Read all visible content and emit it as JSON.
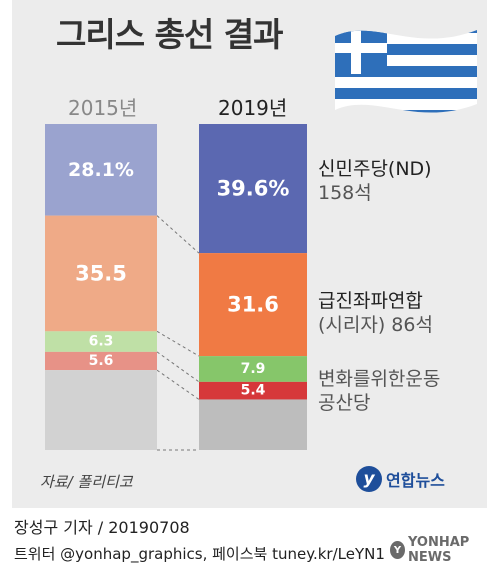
{
  "title": "그리스 총선 결과",
  "chart_data": {
    "type": "bar",
    "stacked": true,
    "categories": [
      "2015년",
      "2019년"
    ],
    "series": [
      {
        "name": "신민주당(ND)",
        "values": [
          28.1,
          39.6
        ],
        "labels": [
          "28.1%",
          "39.6%"
        ],
        "colors": [
          "#9aa3cf",
          "#5b68b1"
        ]
      },
      {
        "name": "급진좌파연합(시리자)",
        "values": [
          35.5,
          31.6
        ],
        "labels": [
          "35.5",
          "31.6"
        ],
        "colors": [
          "#efaa87",
          "#f07a44"
        ]
      },
      {
        "name": "변화를위한운동",
        "values": [
          6.3,
          7.9
        ],
        "labels": [
          "6.3",
          "7.9"
        ],
        "colors": [
          "#bfe0a6",
          "#86c66a"
        ]
      },
      {
        "name": "공산당",
        "values": [
          5.6,
          5.4
        ],
        "labels": [
          "5.6",
          "5.4"
        ],
        "colors": [
          "#e79287",
          "#d6383a"
        ]
      },
      {
        "name": "",
        "values": [
          24.5,
          15.5
        ],
        "labels": [
          "",
          ""
        ],
        "colors": [
          "#d2d2d2",
          "#bdbdbd"
        ]
      }
    ]
  },
  "parties": {
    "nd": {
      "name": "신민주당(ND)",
      "seats": "158석"
    },
    "syriza": {
      "name": "급진좌파연합",
      "sub": "(시리자)  86석"
    },
    "kinal": {
      "name": "변화를위한운동"
    },
    "kke": {
      "name": "공산당"
    }
  },
  "source": "자료/ 폴리티코",
  "logo_text": "연합뉴스",
  "logo_mark": "y",
  "credit": "장성구 기자 / 20190708",
  "social": "트위터 @yonhap_graphics, 페이스북 tuney.kr/LeYN1",
  "watermark": "YONHAP NEWS",
  "watermark_mark": "Y",
  "flag_colors": {
    "blue": "#2e6fba",
    "white": "#ffffff"
  }
}
